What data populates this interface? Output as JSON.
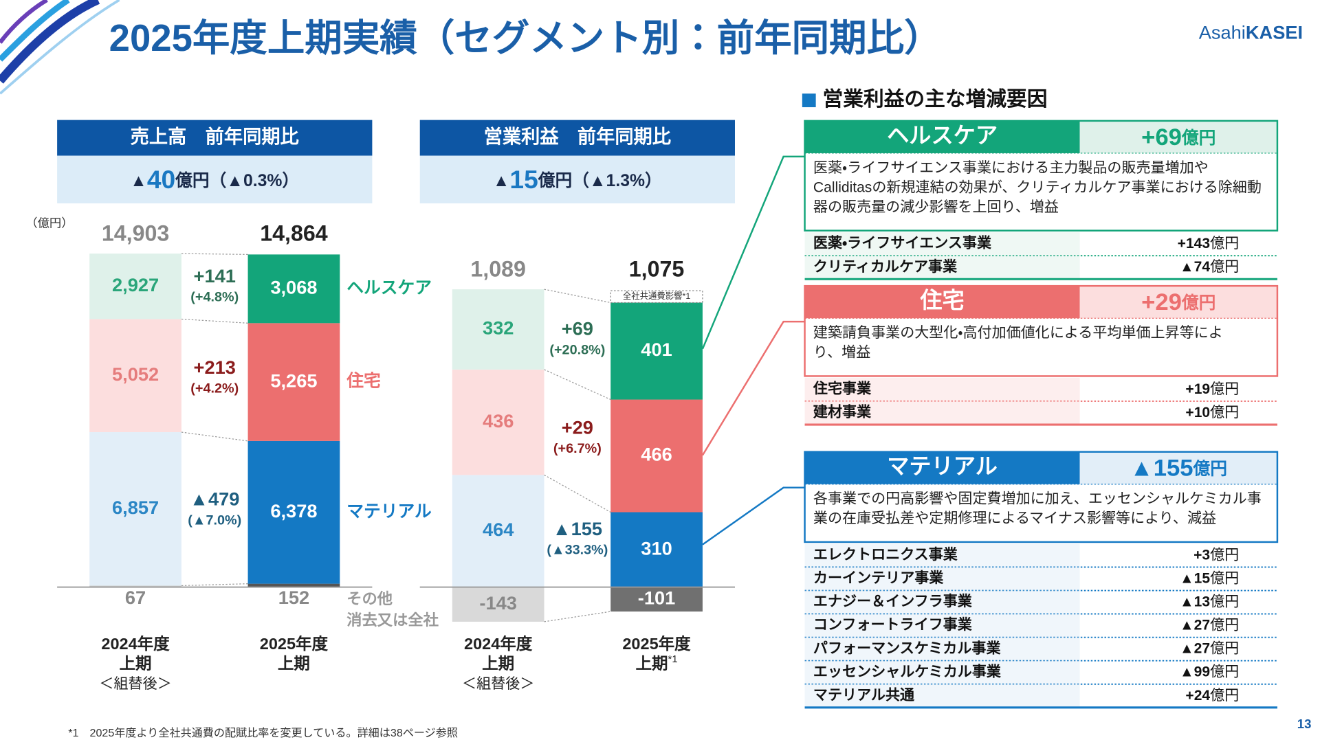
{
  "title": "2025年度上期実績（セグメント別：前年同期比）",
  "logo": {
    "regular": "Asahi",
    "bold": "KASEI"
  },
  "unit": "（億円）",
  "charts": [
    {
      "header": "売上高　前年同期比",
      "summary": {
        "sign": "▲",
        "amount": "40",
        "rest": "億円（▲0.3%）"
      },
      "totals": [
        "14,903",
        "14,864"
      ],
      "periods": [
        [
          "2024年度",
          "上期",
          "＜組替後＞"
        ],
        [
          "2025年度",
          "上期"
        ]
      ],
      "series": [
        {
          "name": "ヘルスケア",
          "color": "#13a57a",
          "light": "#dff1ea",
          "light_text": "#2aa57a",
          "change_color": "#2d6e55",
          "values": [
            2927,
            3068
          ],
          "value_labels": [
            "2,927",
            "3,068"
          ],
          "change": "+141",
          "change_pct": "(+4.8%)"
        },
        {
          "name": "住宅",
          "color": "#ec6f6f",
          "light": "#fcdede",
          "light_text": "#e57c7c",
          "change_color": "#8b1c1c",
          "values": [
            5052,
            5265
          ],
          "value_labels": [
            "5,052",
            "5,265"
          ],
          "change": "+213",
          "change_pct": "(+4.2%)"
        },
        {
          "name": "マテリアル",
          "color": "#1479c4",
          "light": "#e2eef8",
          "light_text": "#2b86c5",
          "change_color": "#1f5f80",
          "values": [
            6857,
            6378
          ],
          "value_labels": [
            "6,857",
            "6,378"
          ],
          "change": "▲479",
          "change_pct": "(▲7.0%)"
        },
        {
          "name_lines": [
            "その他",
            "消去又は全社"
          ],
          "color": "#555555",
          "light": "#cccccc",
          "light_text": "#888888",
          "values": [
            67,
            152
          ]
        }
      ]
    },
    {
      "header": "営業利益　前年同期比",
      "summary": {
        "sign": "▲",
        "amount": "15",
        "rest": "億円（▲1.3%）"
      },
      "totals": [
        "1,089",
        "1,075"
      ],
      "periods": [
        [
          "2024年度",
          "上期",
          "＜組替後＞"
        ],
        [
          "2025年度",
          "上期"
        ]
      ],
      "period_note": "*1",
      "bar_note": "全社共通費影響*1",
      "series": [
        {
          "color": "#13a57a",
          "light": "#dff1ea",
          "light_text": "#2aa57a",
          "change_color": "#2d6e55",
          "values": [
            332,
            401
          ],
          "change": "+69",
          "change_pct": "(+20.8%)"
        },
        {
          "color": "#ec6f6f",
          "light": "#fcdede",
          "light_text": "#e57c7c",
          "change_color": "#8b1c1c",
          "values": [
            436,
            466
          ],
          "change": "+29",
          "change_pct": "(+6.7%)"
        },
        {
          "color": "#1479c4",
          "light": "#e2eef8",
          "light_text": "#2b86c5",
          "change_color": "#1f5f80",
          "values": [
            464,
            310
          ],
          "change": "▲155",
          "change_pct": "(▲33.3%)"
        },
        {
          "color": "#707070",
          "light": "#d9d9d9",
          "light_text": "#888888",
          "values": [
            -143,
            -101
          ]
        }
      ]
    }
  ],
  "factors": {
    "heading": "営業利益の主な増減要因",
    "sections": [
      {
        "name": "ヘルスケア",
        "amount": "+69",
        "unit": "億円",
        "color": "#13a57a",
        "light": "#dff1ea",
        "description": [
          "医薬・ライフサイエンス事業における主力製品の販売量増加や",
          "Calliditasの新規連結の効果が、クリティカルケア事業における除細動",
          "器の販売量の減少影響を上回り、増益"
        ],
        "items": [
          {
            "name": "医薬・ライフサイエンス事業",
            "value": "+143",
            "unit": "億円"
          },
          {
            "name": "クリティカルケア事業",
            "value": "▲74",
            "unit": "億円"
          }
        ]
      },
      {
        "name": "住宅",
        "amount": "+29",
        "unit": "億円",
        "color": "#ec6f6f",
        "light": "#fcdede",
        "description": [
          "建築請負事業の大型化・高付加価値化による平均単価上昇等によ",
          "り、増益"
        ],
        "items": [
          {
            "name": "住宅事業",
            "value": "+19",
            "unit": "億円"
          },
          {
            "name": "建材事業",
            "value": "+10",
            "unit": "億円"
          }
        ]
      },
      {
        "name": "マテリアル",
        "amount": "▲155",
        "unit": "億円",
        "color": "#1479c4",
        "light": "#e2eef8",
        "description": [
          "各事業での円高影響や固定費増加に加え、エッセンシャルケミカル事",
          "業の在庫受払差や定期修理によるマイナス影響等により、減益"
        ],
        "items": [
          {
            "name": "エレクトロニクス事業",
            "value": "+3",
            "unit": "億円"
          },
          {
            "name": "カーインテリア事業",
            "value": "▲15",
            "unit": "億円"
          },
          {
            "name": "エナジー＆インフラ事業",
            "value": "▲13",
            "unit": "億円"
          },
          {
            "name": "コンフォートライフ事業",
            "value": "▲27",
            "unit": "億円"
          },
          {
            "name": "パフォーマンスケミカル事業",
            "value": "▲27",
            "unit": "億円"
          },
          {
            "name": "エッセンシャルケミカル事業",
            "value": "▲99",
            "unit": "億円"
          },
          {
            "name": "マテリアル共通",
            "value": "+24",
            "unit": "億円"
          }
        ]
      }
    ]
  },
  "footnote": "*1　2025年度より全社共通費の配賦比率を変更している。詳細は38ページ参照",
  "page_number": "13"
}
